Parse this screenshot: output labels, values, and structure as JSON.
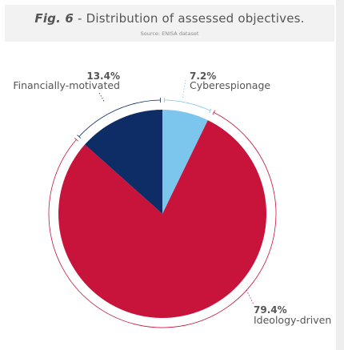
{
  "figure": {
    "fig_number": "Fig. 6",
    "title_rest": " - Distribution of assessed objectives.",
    "source": "Source: ENISA dataset"
  },
  "chart_data": {
    "type": "pie",
    "title": "Fig. 6 - Distribution of assessed objectives.",
    "start_angle_deg": 0,
    "direction": "clockwise",
    "slices": [
      {
        "label": "Cyberespionage",
        "value": 7.2,
        "value_label": "7.2%",
        "color": "#7cc6ee"
      },
      {
        "label": "Ideology-driven",
        "value": 79.4,
        "value_label": "79.4%",
        "color": "#c8133b"
      },
      {
        "label": "Financially-motivated",
        "value": 13.4,
        "value_label": "13.4%",
        "color": "#0e2d66"
      }
    ]
  }
}
